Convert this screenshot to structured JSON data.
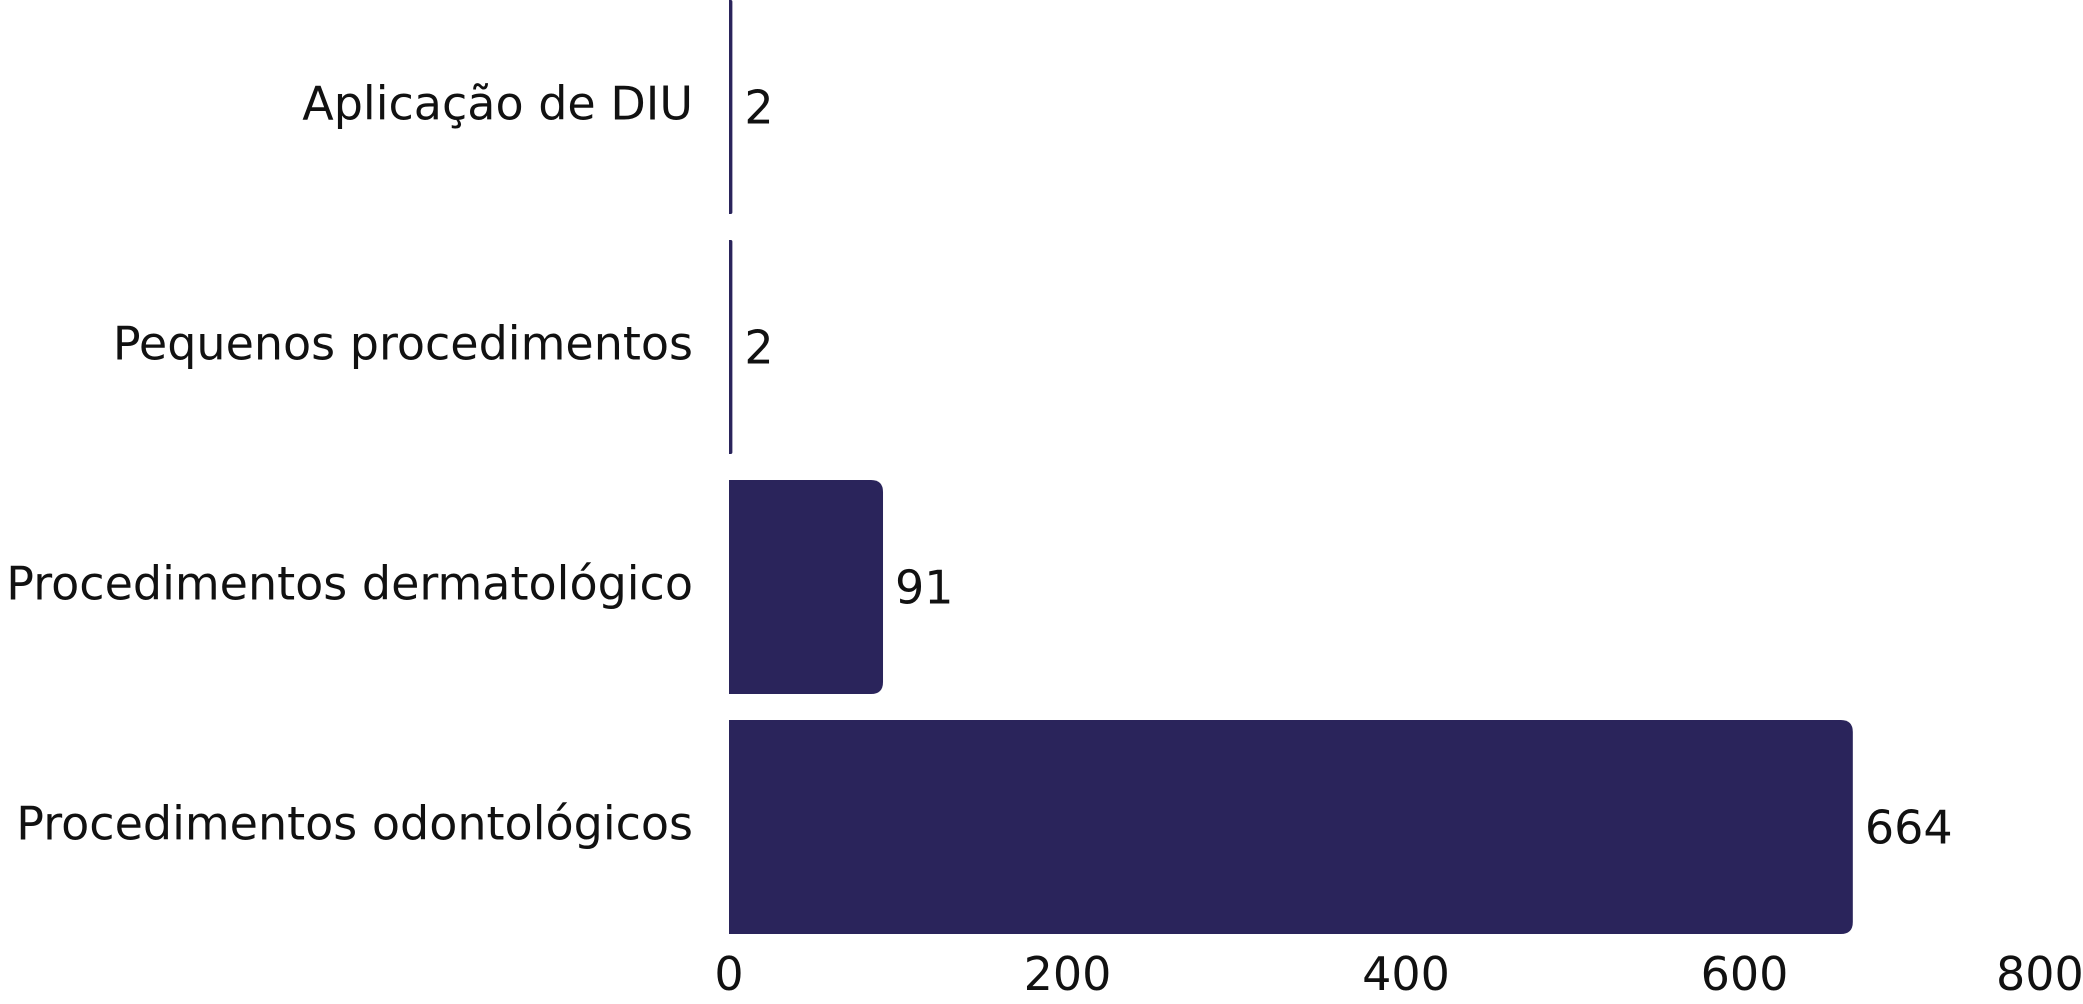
{
  "chart_data": {
    "type": "bar",
    "orientation": "horizontal",
    "categories": [
      "Aplicação de DIU",
      "Pequenos procedimentos",
      "Procedimentos dermatológico",
      "Procedimentos odontológicos"
    ],
    "values": [
      2,
      2,
      91,
      664
    ],
    "xlim": [
      0,
      800
    ],
    "x_ticks": [
      0,
      200,
      400,
      600,
      800
    ],
    "x_tick_labels": [
      "0",
      "200",
      "400",
      "600",
      "800"
    ],
    "grid": false,
    "legend": "none",
    "colors": {
      "bar": "#2A245B",
      "text": "#111111"
    }
  }
}
